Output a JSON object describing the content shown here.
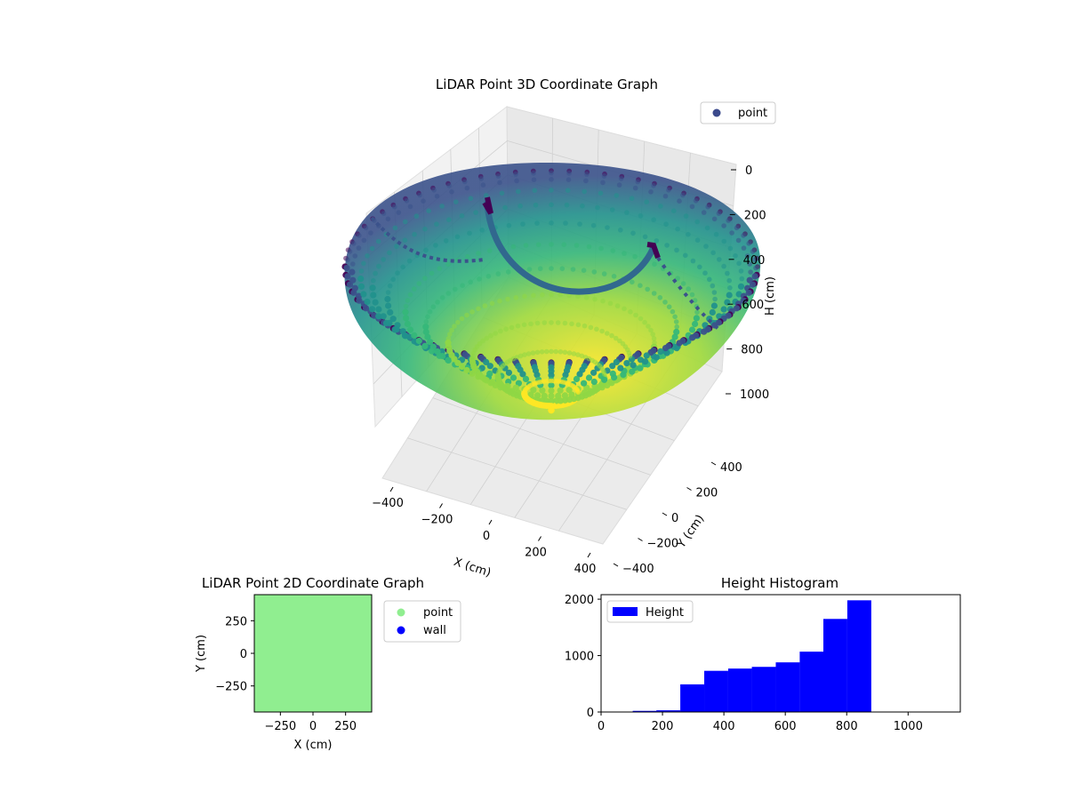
{
  "chart_data": [
    {
      "type": "scatter",
      "projection": "3d",
      "title": "LiDAR Point 3D Coordinate Graph",
      "xlabel": "X (cm)",
      "ylabel": "Y (cm)",
      "zlabel": "H (cm)",
      "xticks": [
        -400,
        -200,
        0,
        200,
        400
      ],
      "yticks": [
        -400,
        -200,
        0,
        200,
        400
      ],
      "zticks": [
        0,
        200,
        400,
        600,
        800,
        1000
      ],
      "xtick_labels": [
        "−400",
        "−200",
        "0",
        "200",
        "400"
      ],
      "ytick_labels": [
        "−400",
        "−200",
        "0",
        "200",
        "400"
      ],
      "ztick_labels": [
        "0",
        "200",
        "400",
        "600",
        "800",
        "1000"
      ],
      "zlim": [
        0,
        1100
      ],
      "z_inverted": true,
      "grid": true,
      "colormap": "viridis",
      "legend": [
        {
          "label": "point",
          "color": "#3b4a8c"
        }
      ],
      "legend_position": "top-right",
      "surface": {
        "shape": "bowl",
        "rim_height": 0,
        "bottom_height": 800,
        "radius": 450
      }
    },
    {
      "type": "scatter",
      "title": "LiDAR Point 2D Coordinate Graph",
      "xlabel": "X (cm)",
      "ylabel": "Y (cm)",
      "xlim": [
        -450,
        450
      ],
      "ylim": [
        -450,
        450
      ],
      "xticks": [
        -250,
        0,
        250
      ],
      "yticks": [
        -250,
        0,
        250
      ],
      "xtick_labels": [
        "−250",
        "0",
        "250"
      ],
      "ytick_labels": [
        "−250",
        "0",
        "250"
      ],
      "fill_color": "#90ee90",
      "legend": [
        {
          "label": "point",
          "color": "#90ee90"
        },
        {
          "label": "wall",
          "color": "#0000ff"
        }
      ],
      "legend_position": "outside-right"
    },
    {
      "type": "bar",
      "subtype": "histogram",
      "title": "Height Histogram",
      "xlim": [
        0,
        1170
      ],
      "ylim": [
        0,
        2080
      ],
      "xticks": [
        0,
        200,
        400,
        600,
        800,
        1000
      ],
      "yticks": [
        0,
        1000,
        2000
      ],
      "bins": [
        {
          "x0": 103,
          "x1": 180,
          "value": 20
        },
        {
          "x0": 180,
          "x1": 258,
          "value": 30
        },
        {
          "x0": 258,
          "x1": 336,
          "value": 490
        },
        {
          "x0": 336,
          "x1": 414,
          "value": 730
        },
        {
          "x0": 414,
          "x1": 491,
          "value": 770
        },
        {
          "x0": 491,
          "x1": 569,
          "value": 800
        },
        {
          "x0": 569,
          "x1": 647,
          "value": 880
        },
        {
          "x0": 647,
          "x1": 724,
          "value": 1070
        },
        {
          "x0": 724,
          "x1": 802,
          "value": 1650
        },
        {
          "x0": 802,
          "x1": 880,
          "value": 1980
        }
      ],
      "color": "#0000ff",
      "legend": [
        {
          "label": "Height",
          "color": "#0000ff"
        }
      ],
      "legend_position": "top-left"
    }
  ]
}
